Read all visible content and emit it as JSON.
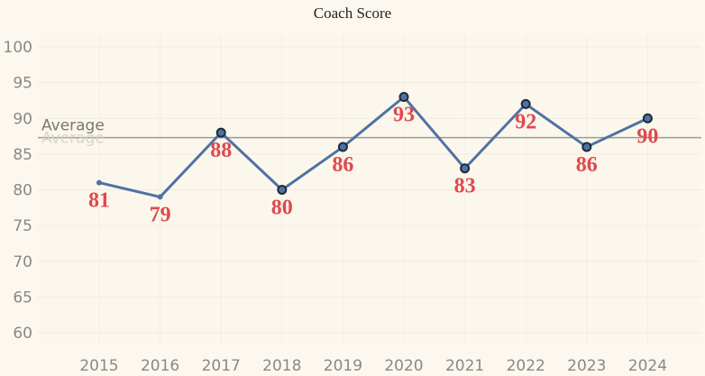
{
  "chart_data": {
    "type": "line",
    "title": "Coach Score",
    "xlabel": "",
    "ylabel": "",
    "categories": [
      "2015",
      "2016",
      "2017",
      "2018",
      "2019",
      "2020",
      "2021",
      "2022",
      "2023",
      "2024"
    ],
    "series": [
      {
        "values": [
          81,
          79,
          88,
          80,
          86,
          93,
          83,
          92,
          86,
          90
        ]
      }
    ],
    "data_labels": [
      "81",
      "79",
      "88",
      "80",
      "86",
      "93",
      "83",
      "92",
      "86",
      "90"
    ],
    "markers": [
      false,
      false,
      true,
      true,
      true,
      true,
      true,
      true,
      true,
      true
    ],
    "yticks": [
      60,
      65,
      70,
      75,
      80,
      85,
      90,
      95,
      100
    ],
    "ylim": [
      58,
      102
    ],
    "reference_line": {
      "label": "Average",
      "value": 87.3
    },
    "grid": true,
    "colors": {
      "line": "#4e73a3",
      "label": "#e0484f",
      "reference": "#9a9a9a",
      "background": "#fdf8ef"
    }
  }
}
